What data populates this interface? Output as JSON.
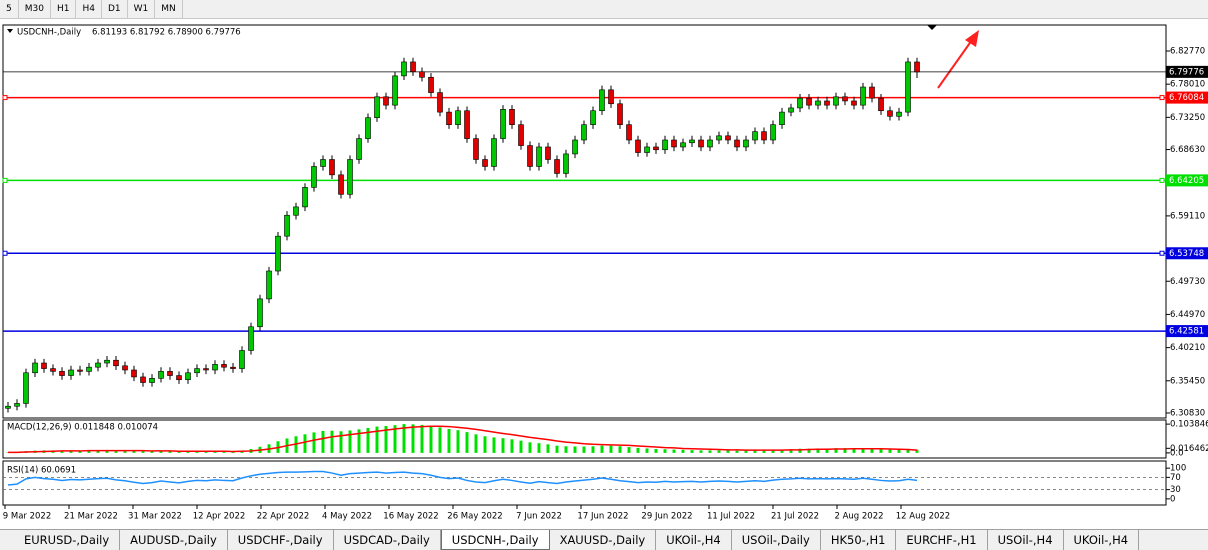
{
  "toolbar": {
    "timeframes": [
      "5",
      "M30",
      "H1",
      "H4",
      "D1",
      "W1",
      "MN"
    ]
  },
  "chart_data": {
    "type": "candlestick",
    "symbol": "USDCNH-,Daily",
    "ohlc_label": "6.81193 6.81792 6.78900 6.79776",
    "up_color": "#00c800",
    "down_color": "#e00000",
    "candles": [
      [
        6.315,
        6.324,
        6.309,
        6.318
      ],
      [
        6.318,
        6.328,
        6.312,
        6.322
      ],
      [
        6.322,
        6.372,
        6.316,
        6.366
      ],
      [
        6.366,
        6.386,
        6.36,
        6.38
      ],
      [
        6.38,
        6.386,
        6.366,
        6.372
      ],
      [
        6.372,
        6.378,
        6.362,
        6.368
      ],
      [
        6.368,
        6.374,
        6.356,
        6.362
      ],
      [
        6.362,
        6.376,
        6.356,
        6.37
      ],
      [
        6.37,
        6.376,
        6.362,
        6.368
      ],
      [
        6.368,
        6.38,
        6.362,
        6.374
      ],
      [
        6.374,
        6.386,
        6.368,
        6.38
      ],
      [
        6.38,
        6.39,
        6.374,
        6.384
      ],
      [
        6.384,
        6.39,
        6.37,
        6.376
      ],
      [
        6.376,
        6.382,
        6.364,
        6.37
      ],
      [
        6.37,
        6.376,
        6.354,
        6.36
      ],
      [
        6.36,
        6.366,
        6.346,
        6.352
      ],
      [
        6.352,
        6.364,
        6.346,
        6.358
      ],
      [
        6.358,
        6.374,
        6.352,
        6.368
      ],
      [
        6.368,
        6.374,
        6.356,
        6.362
      ],
      [
        6.362,
        6.368,
        6.35,
        6.356
      ],
      [
        6.356,
        6.372,
        6.35,
        6.366
      ],
      [
        6.366,
        6.378,
        6.36,
        6.372
      ],
      [
        6.372,
        6.378,
        6.364,
        6.37
      ],
      [
        6.37,
        6.384,
        6.364,
        6.378
      ],
      [
        6.378,
        6.384,
        6.368,
        6.374
      ],
      [
        6.374,
        6.38,
        6.366,
        6.372
      ],
      [
        6.372,
        6.404,
        6.366,
        6.398
      ],
      [
        6.398,
        6.438,
        6.392,
        6.432
      ],
      [
        6.432,
        6.478,
        6.426,
        6.472
      ],
      [
        6.472,
        6.518,
        6.466,
        6.512
      ],
      [
        6.512,
        6.568,
        6.506,
        6.562
      ],
      [
        6.562,
        6.598,
        6.556,
        6.592
      ],
      [
        6.592,
        6.61,
        6.586,
        6.604
      ],
      [
        6.604,
        6.638,
        6.598,
        6.632
      ],
      [
        6.632,
        6.668,
        6.626,
        6.662
      ],
      [
        6.662,
        6.678,
        6.656,
        6.672
      ],
      [
        6.672,
        6.678,
        6.644,
        6.65
      ],
      [
        6.65,
        6.656,
        6.616,
        6.622
      ],
      [
        6.622,
        6.678,
        6.616,
        6.672
      ],
      [
        6.672,
        6.708,
        6.666,
        6.702
      ],
      [
        6.702,
        6.738,
        6.696,
        6.732
      ],
      [
        6.732,
        6.768,
        6.726,
        6.762
      ],
      [
        6.762,
        6.768,
        6.744,
        6.75
      ],
      [
        6.75,
        6.798,
        6.744,
        6.792
      ],
      [
        6.792,
        6.818,
        6.786,
        6.812
      ],
      [
        6.812,
        6.818,
        6.792,
        6.798
      ],
      [
        6.798,
        6.804,
        6.784,
        6.79
      ],
      [
        6.79,
        6.796,
        6.762,
        6.768
      ],
      [
        6.768,
        6.774,
        6.734,
        6.74
      ],
      [
        6.74,
        6.746,
        6.716,
        6.722
      ],
      [
        6.722,
        6.748,
        6.716,
        6.742
      ],
      [
        6.742,
        6.748,
        6.696,
        6.702
      ],
      [
        6.702,
        6.708,
        6.666,
        6.672
      ],
      [
        6.672,
        6.678,
        6.656,
        6.662
      ],
      [
        6.662,
        6.708,
        6.656,
        6.702
      ],
      [
        6.702,
        6.75,
        6.696,
        6.744
      ],
      [
        6.744,
        6.75,
        6.716,
        6.722
      ],
      [
        6.722,
        6.728,
        6.686,
        6.692
      ],
      [
        6.692,
        6.698,
        6.656,
        6.662
      ],
      [
        6.662,
        6.696,
        6.656,
        6.69
      ],
      [
        6.69,
        6.696,
        6.666,
        6.672
      ],
      [
        6.672,
        6.678,
        6.646,
        6.652
      ],
      [
        6.652,
        6.686,
        6.646,
        6.68
      ],
      [
        6.68,
        6.706,
        6.674,
        6.7
      ],
      [
        6.7,
        6.728,
        6.694,
        6.722
      ],
      [
        6.722,
        6.748,
        6.716,
        6.742
      ],
      [
        6.742,
        6.778,
        6.736,
        6.772
      ],
      [
        6.772,
        6.778,
        6.746,
        6.752
      ],
      [
        6.752,
        6.758,
        6.716,
        6.722
      ],
      [
        6.722,
        6.728,
        6.694,
        6.7
      ],
      [
        6.7,
        6.706,
        6.676,
        6.682
      ],
      [
        6.682,
        6.696,
        6.676,
        6.69
      ],
      [
        6.69,
        6.696,
        6.68,
        6.686
      ],
      [
        6.686,
        6.706,
        6.68,
        6.7
      ],
      [
        6.7,
        6.706,
        6.684,
        6.69
      ],
      [
        6.69,
        6.702,
        6.684,
        6.696
      ],
      [
        6.696,
        6.706,
        6.69,
        6.7
      ],
      [
        6.7,
        6.706,
        6.684,
        6.69
      ],
      [
        6.69,
        6.706,
        6.684,
        6.7
      ],
      [
        6.7,
        6.712,
        6.694,
        6.706
      ],
      [
        6.706,
        6.712,
        6.694,
        6.7
      ],
      [
        6.7,
        6.706,
        6.684,
        6.69
      ],
      [
        6.69,
        6.706,
        6.684,
        6.7
      ],
      [
        6.7,
        6.718,
        6.694,
        6.712
      ],
      [
        6.712,
        6.718,
        6.694,
        6.7
      ],
      [
        6.7,
        6.728,
        6.694,
        6.722
      ],
      [
        6.722,
        6.746,
        6.716,
        6.74
      ],
      [
        6.74,
        6.752,
        6.734,
        6.746
      ],
      [
        6.746,
        6.766,
        6.74,
        6.76
      ],
      [
        6.76,
        6.766,
        6.744,
        6.75
      ],
      [
        6.75,
        6.762,
        6.744,
        6.756
      ],
      [
        6.756,
        6.762,
        6.744,
        6.75
      ],
      [
        6.75,
        6.768,
        6.744,
        6.762
      ],
      [
        6.762,
        6.768,
        6.75,
        6.756
      ],
      [
        6.756,
        6.762,
        6.744,
        6.75
      ],
      [
        6.75,
        6.782,
        6.744,
        6.776
      ],
      [
        6.776,
        6.782,
        6.754,
        6.76
      ],
      [
        6.76,
        6.766,
        6.736,
        6.742
      ],
      [
        6.742,
        6.748,
        6.728,
        6.734
      ],
      [
        6.734,
        6.746,
        6.728,
        6.74
      ],
      [
        6.74,
        6.818,
        6.734,
        6.812
      ],
      [
        6.81193,
        6.81792,
        6.789,
        6.79776
      ]
    ],
    "ylim": [
      6.3011,
      6.865
    ],
    "yticks": [
      {
        "value": 6.8277,
        "label": "6.82770"
      },
      {
        "value": 6.7801,
        "label": "6.78010"
      },
      {
        "value": 6.7325,
        "label": "6.73250"
      },
      {
        "value": 6.6863,
        "label": "6.68630"
      },
      {
        "value": 6.5911,
        "label": "6.59110"
      },
      {
        "value": 6.4973,
        "label": "6.49730"
      },
      {
        "value": 6.4497,
        "label": "6.44970"
      },
      {
        "value": 6.4021,
        "label": "6.40210"
      },
      {
        "value": 6.3545,
        "label": "6.35450"
      },
      {
        "value": 6.3083,
        "label": "6.30830"
      }
    ],
    "current_price": 6.79776,
    "levels": [
      {
        "value": 6.76084,
        "color": "#ff0000",
        "marker": true
      },
      {
        "value": 6.64205,
        "color": "#00e000",
        "marker": true
      },
      {
        "value": 6.53748,
        "color": "#0000e0",
        "marker": true
      },
      {
        "value": 6.42581,
        "color": "#0000e0",
        "marker": false
      }
    ],
    "x_labels": [
      "9 Mar 2022",
      "21 Mar 2022",
      "31 Mar 2022",
      "12 Apr 2022",
      "22 Apr 2022",
      "4 May 2022",
      "16 May 2022",
      "26 May 2022",
      "7 Jun 2022",
      "17 Jun 2022",
      "29 Jun 2022",
      "11 Jul 2022",
      "21 Jul 2022",
      "2 Aug 2022",
      "12 Aug 2022"
    ],
    "macd": {
      "label": "MACD(12,26,9) 0.011848 0.010074",
      "hist_color": "#00e000",
      "signal_color": "#ff0000",
      "ylim": [
        -0.0185,
        0.1187
      ],
      "yticks": [
        0.103846,
        {
          "value": 0,
          "label": "0.0"
        },
        0.016462
      ],
      "histogram": [
        0.002,
        0.003,
        0.006,
        0.008,
        0.009,
        0.009,
        0.008,
        0.008,
        0.008,
        0.008,
        0.009,
        0.009,
        0.009,
        0.008,
        0.007,
        0.006,
        0.006,
        0.006,
        0.005,
        0.005,
        0.005,
        0.005,
        0.005,
        0.005,
        0.005,
        0.005,
        0.008,
        0.014,
        0.022,
        0.031,
        0.042,
        0.052,
        0.06,
        0.067,
        0.074,
        0.079,
        0.08,
        0.078,
        0.081,
        0.085,
        0.09,
        0.095,
        0.097,
        0.1,
        0.104,
        0.103,
        0.101,
        0.098,
        0.092,
        0.086,
        0.082,
        0.075,
        0.067,
        0.06,
        0.056,
        0.053,
        0.049,
        0.044,
        0.038,
        0.035,
        0.031,
        0.026,
        0.024,
        0.023,
        0.023,
        0.024,
        0.026,
        0.026,
        0.024,
        0.021,
        0.018,
        0.016,
        0.014,
        0.013,
        0.012,
        0.011,
        0.01,
        0.009,
        0.009,
        0.009,
        0.009,
        0.008,
        0.008,
        0.009,
        0.008,
        0.01,
        0.012,
        0.013,
        0.015,
        0.015,
        0.016,
        0.016,
        0.017,
        0.017,
        0.016,
        0.017,
        0.016,
        0.014,
        0.012,
        0.011,
        0.013,
        0.011848
      ],
      "signal": [
        0.002,
        0.002,
        0.003,
        0.004,
        0.005,
        0.006,
        0.007,
        0.007,
        0.007,
        0.008,
        0.008,
        0.008,
        0.008,
        0.008,
        0.008,
        0.008,
        0.007,
        0.007,
        0.007,
        0.006,
        0.006,
        0.006,
        0.006,
        0.006,
        0.006,
        0.005,
        0.006,
        0.007,
        0.01,
        0.014,
        0.019,
        0.026,
        0.032,
        0.039,
        0.046,
        0.052,
        0.058,
        0.062,
        0.066,
        0.07,
        0.074,
        0.078,
        0.082,
        0.086,
        0.09,
        0.093,
        0.095,
        0.096,
        0.096,
        0.095,
        0.092,
        0.089,
        0.085,
        0.08,
        0.075,
        0.07,
        0.066,
        0.061,
        0.056,
        0.052,
        0.048,
        0.043,
        0.039,
        0.036,
        0.033,
        0.031,
        0.03,
        0.029,
        0.028,
        0.027,
        0.025,
        0.023,
        0.021,
        0.019,
        0.018,
        0.016,
        0.015,
        0.014,
        0.013,
        0.012,
        0.011,
        0.011,
        0.01,
        0.01,
        0.01,
        0.01,
        0.01,
        0.011,
        0.011,
        0.012,
        0.013,
        0.013,
        0.014,
        0.014,
        0.015,
        0.015,
        0.015,
        0.015,
        0.014,
        0.013,
        0.012,
        0.010074
      ]
    },
    "rsi": {
      "label": "RSI(14) 60.0691",
      "color": "#1e90ff",
      "ylim": [
        -20,
        123.3
      ],
      "yticks": [
        100,
        70,
        30,
        0
      ],
      "levels": [
        70,
        30
      ],
      "values": [
        45,
        48,
        65,
        70,
        66,
        64,
        60,
        63,
        62,
        64,
        66,
        67,
        62,
        59,
        54,
        50,
        53,
        58,
        55,
        52,
        57,
        60,
        59,
        62,
        60,
        59,
        68,
        75,
        80,
        83,
        86,
        87,
        87,
        88,
        89,
        89,
        84,
        77,
        82,
        84,
        86,
        87,
        84,
        86,
        87,
        84,
        82,
        77,
        70,
        66,
        68,
        60,
        55,
        53,
        59,
        64,
        60,
        55,
        51,
        56,
        53,
        50,
        55,
        58,
        61,
        64,
        68,
        64,
        59,
        56,
        53,
        55,
        54,
        57,
        55,
        56,
        57,
        55,
        57,
        58,
        57,
        55,
        57,
        59,
        57,
        61,
        64,
        65,
        67,
        65,
        66,
        65,
        66,
        65,
        64,
        67,
        64,
        60,
        58,
        59,
        64,
        60.0691
      ]
    }
  },
  "tabs": [
    "EURUSD-,Daily",
    "AUDUSD-,Daily",
    "USDCHF-,Daily",
    "USDCAD-,Daily",
    "USDCNH-,Daily",
    "XAUUSD-,Daily",
    "UKOil-,H4",
    "USOil-,Daily",
    "HK50-,H1",
    "EURCHF-,H1",
    "USOil-,H4",
    "UKOil-,H4"
  ],
  "active_tab": 4
}
